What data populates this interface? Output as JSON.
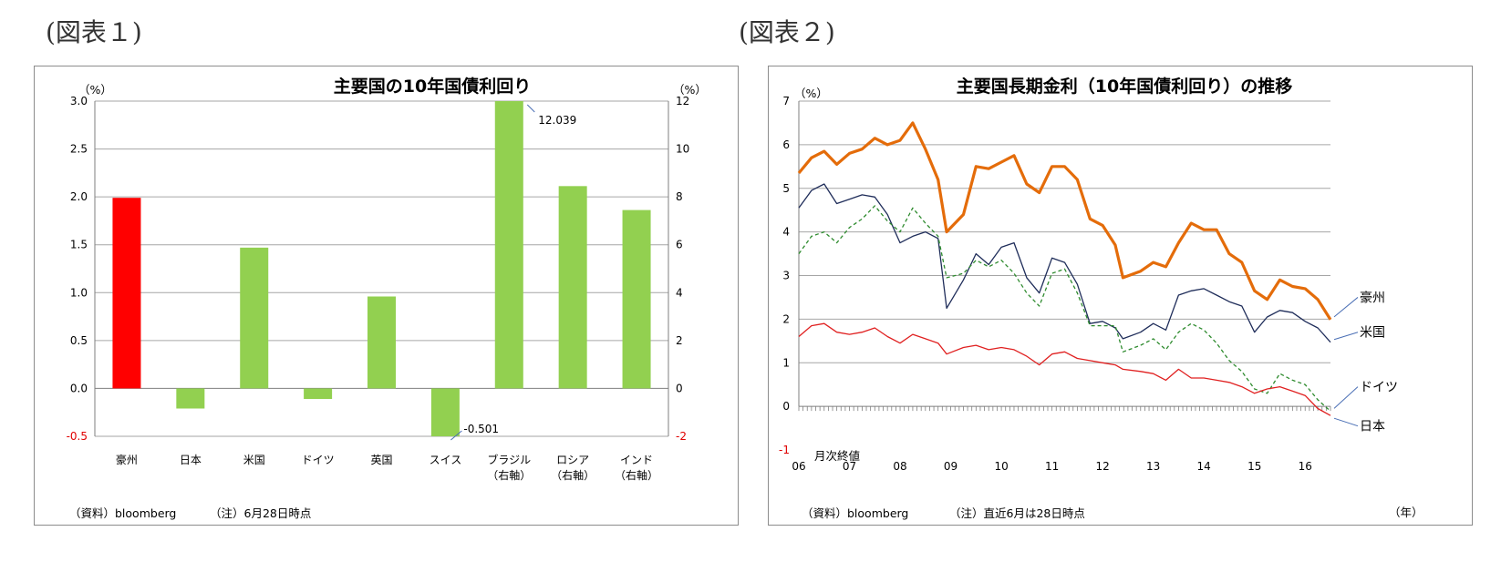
{
  "figures": [
    {
      "label": "(図表１)",
      "source": "（資料）bloomberg",
      "note": "（注）6月28日時点"
    },
    {
      "label": "(図表２)",
      "source": "（資料）bloomberg",
      "note": "（注）直近6月は28日時点",
      "inline_note": "月次終値"
    }
  ],
  "chart_data": [
    {
      "type": "bar",
      "title": "主要国の10年国債利回り",
      "left_unit": "（%）",
      "right_unit": "（%）",
      "categories": [
        "豪州",
        "日本",
        "米国",
        "ドイツ",
        "英国",
        "スイス",
        "ブラジル\n（右軸）",
        "ロシア\n（右軸）",
        "インド\n（右軸）"
      ],
      "values": [
        1.99,
        -0.21,
        1.47,
        -0.11,
        0.96,
        -0.501,
        12.039,
        8.45,
        7.45
      ],
      "axis": [
        "left",
        "left",
        "left",
        "left",
        "left",
        "left",
        "right",
        "right",
        "right"
      ],
      "colors": [
        "#ff0000",
        "#92d050",
        "#92d050",
        "#92d050",
        "#92d050",
        "#92d050",
        "#92d050",
        "#92d050",
        "#92d050"
      ],
      "data_labels": [
        {
          "category": "スイス",
          "text": "-0.501"
        },
        {
          "category": "ブラジル\n（右軸）",
          "text": "12.039"
        }
      ],
      "ylim_left": [
        -0.5,
        3.0
      ],
      "yticks_left": [
        "-0.5",
        "0.0",
        "0.5",
        "1.0",
        "1.5",
        "2.0",
        "2.5",
        "3.0"
      ],
      "ylim_right": [
        -2,
        12
      ],
      "yticks_right": [
        "-2",
        "0",
        "2",
        "4",
        "6",
        "8",
        "10",
        "12"
      ],
      "grid": true
    },
    {
      "type": "line",
      "title": "主要国長期金利（10年国債利回り）の推移",
      "y_unit": "（%）",
      "x_unit": "（年）",
      "x_labels": [
        "06",
        "07",
        "08",
        "09",
        "10",
        "11",
        "12",
        "13",
        "14",
        "15",
        "16"
      ],
      "x_start": 2006.0,
      "x_end": 2016.5,
      "ylim": [
        -1,
        7
      ],
      "yticks": [
        "-1",
        "0",
        "1",
        "2",
        "3",
        "4",
        "5",
        "6",
        "7"
      ],
      "grid": true,
      "series": [
        {
          "name": "豪州",
          "color": "#e46c0a",
          "style": "solid",
          "width": "thick",
          "points": [
            [
              2006.0,
              5.35
            ],
            [
              2006.25,
              5.7
            ],
            [
              2006.5,
              5.85
            ],
            [
              2006.75,
              5.55
            ],
            [
              2007.0,
              5.8
            ],
            [
              2007.25,
              5.9
            ],
            [
              2007.5,
              6.15
            ],
            [
              2007.75,
              6.0
            ],
            [
              2008.0,
              6.1
            ],
            [
              2008.25,
              6.5
            ],
            [
              2008.5,
              5.9
            ],
            [
              2008.75,
              5.2
            ],
            [
              2008.92,
              4.0
            ],
            [
              2009.25,
              4.4
            ],
            [
              2009.5,
              5.5
            ],
            [
              2009.75,
              5.45
            ],
            [
              2010.0,
              5.6
            ],
            [
              2010.25,
              5.75
            ],
            [
              2010.5,
              5.1
            ],
            [
              2010.75,
              4.9
            ],
            [
              2011.0,
              5.5
            ],
            [
              2011.25,
              5.5
            ],
            [
              2011.5,
              5.2
            ],
            [
              2011.75,
              4.3
            ],
            [
              2012.0,
              4.15
            ],
            [
              2012.25,
              3.7
            ],
            [
              2012.4,
              2.95
            ],
            [
              2012.75,
              3.1
            ],
            [
              2013.0,
              3.3
            ],
            [
              2013.25,
              3.2
            ],
            [
              2013.5,
              3.75
            ],
            [
              2013.75,
              4.2
            ],
            [
              2014.0,
              4.05
            ],
            [
              2014.25,
              4.05
            ],
            [
              2014.5,
              3.5
            ],
            [
              2014.75,
              3.3
            ],
            [
              2015.0,
              2.65
            ],
            [
              2015.25,
              2.45
            ],
            [
              2015.5,
              2.9
            ],
            [
              2015.75,
              2.75
            ],
            [
              2016.0,
              2.7
            ],
            [
              2016.25,
              2.45
            ],
            [
              2016.5,
              1.99
            ]
          ]
        },
        {
          "name": "米国",
          "color": "#1f2d5a",
          "style": "solid",
          "width": "thin",
          "points": [
            [
              2006.0,
              4.55
            ],
            [
              2006.25,
              4.95
            ],
            [
              2006.5,
              5.1
            ],
            [
              2006.75,
              4.65
            ],
            [
              2007.0,
              4.75
            ],
            [
              2007.25,
              4.85
            ],
            [
              2007.5,
              4.8
            ],
            [
              2007.75,
              4.4
            ],
            [
              2008.0,
              3.75
            ],
            [
              2008.25,
              3.9
            ],
            [
              2008.5,
              4.0
            ],
            [
              2008.75,
              3.85
            ],
            [
              2008.92,
              2.25
            ],
            [
              2009.25,
              2.9
            ],
            [
              2009.5,
              3.5
            ],
            [
              2009.75,
              3.25
            ],
            [
              2010.0,
              3.65
            ],
            [
              2010.25,
              3.75
            ],
            [
              2010.5,
              2.95
            ],
            [
              2010.75,
              2.6
            ],
            [
              2011.0,
              3.4
            ],
            [
              2011.25,
              3.3
            ],
            [
              2011.5,
              2.8
            ],
            [
              2011.75,
              1.9
            ],
            [
              2012.0,
              1.95
            ],
            [
              2012.25,
              1.8
            ],
            [
              2012.4,
              1.55
            ],
            [
              2012.75,
              1.7
            ],
            [
              2013.0,
              1.9
            ],
            [
              2013.25,
              1.75
            ],
            [
              2013.5,
              2.55
            ],
            [
              2013.75,
              2.65
            ],
            [
              2014.0,
              2.7
            ],
            [
              2014.25,
              2.55
            ],
            [
              2014.5,
              2.4
            ],
            [
              2014.75,
              2.3
            ],
            [
              2015.0,
              1.7
            ],
            [
              2015.25,
              2.05
            ],
            [
              2015.5,
              2.2
            ],
            [
              2015.75,
              2.15
            ],
            [
              2016.0,
              1.95
            ],
            [
              2016.25,
              1.8
            ],
            [
              2016.5,
              1.47
            ]
          ]
        },
        {
          "name": "ドイツ",
          "color": "#2e8b2e",
          "style": "dashed",
          "width": "thin",
          "points": [
            [
              2006.0,
              3.5
            ],
            [
              2006.25,
              3.9
            ],
            [
              2006.5,
              4.0
            ],
            [
              2006.75,
              3.75
            ],
            [
              2007.0,
              4.1
            ],
            [
              2007.25,
              4.3
            ],
            [
              2007.5,
              4.6
            ],
            [
              2007.75,
              4.25
            ],
            [
              2008.0,
              4.0
            ],
            [
              2008.25,
              4.55
            ],
            [
              2008.5,
              4.2
            ],
            [
              2008.75,
              3.9
            ],
            [
              2008.92,
              2.95
            ],
            [
              2009.25,
              3.05
            ],
            [
              2009.5,
              3.35
            ],
            [
              2009.75,
              3.2
            ],
            [
              2010.0,
              3.35
            ],
            [
              2010.25,
              3.05
            ],
            [
              2010.5,
              2.6
            ],
            [
              2010.75,
              2.3
            ],
            [
              2011.0,
              3.05
            ],
            [
              2011.25,
              3.15
            ],
            [
              2011.5,
              2.6
            ],
            [
              2011.75,
              1.85
            ],
            [
              2012.0,
              1.85
            ],
            [
              2012.25,
              1.85
            ],
            [
              2012.4,
              1.25
            ],
            [
              2012.75,
              1.4
            ],
            [
              2013.0,
              1.55
            ],
            [
              2013.25,
              1.3
            ],
            [
              2013.5,
              1.7
            ],
            [
              2013.75,
              1.9
            ],
            [
              2014.0,
              1.75
            ],
            [
              2014.25,
              1.45
            ],
            [
              2014.5,
              1.05
            ],
            [
              2014.75,
              0.8
            ],
            [
              2015.0,
              0.4
            ],
            [
              2015.25,
              0.3
            ],
            [
              2015.5,
              0.75
            ],
            [
              2015.75,
              0.6
            ],
            [
              2016.0,
              0.5
            ],
            [
              2016.25,
              0.15
            ],
            [
              2016.5,
              -0.11
            ]
          ]
        },
        {
          "name": "日本",
          "color": "#e02020",
          "style": "solid",
          "width": "thin",
          "points": [
            [
              2006.0,
              1.6
            ],
            [
              2006.25,
              1.85
            ],
            [
              2006.5,
              1.9
            ],
            [
              2006.75,
              1.7
            ],
            [
              2007.0,
              1.65
            ],
            [
              2007.25,
              1.7
            ],
            [
              2007.5,
              1.8
            ],
            [
              2007.75,
              1.6
            ],
            [
              2008.0,
              1.45
            ],
            [
              2008.25,
              1.65
            ],
            [
              2008.5,
              1.55
            ],
            [
              2008.75,
              1.45
            ],
            [
              2008.92,
              1.2
            ],
            [
              2009.25,
              1.35
            ],
            [
              2009.5,
              1.4
            ],
            [
              2009.75,
              1.3
            ],
            [
              2010.0,
              1.35
            ],
            [
              2010.25,
              1.3
            ],
            [
              2010.5,
              1.15
            ],
            [
              2010.75,
              0.95
            ],
            [
              2011.0,
              1.2
            ],
            [
              2011.25,
              1.25
            ],
            [
              2011.5,
              1.1
            ],
            [
              2011.75,
              1.05
            ],
            [
              2012.0,
              1.0
            ],
            [
              2012.25,
              0.95
            ],
            [
              2012.4,
              0.85
            ],
            [
              2012.75,
              0.8
            ],
            [
              2013.0,
              0.75
            ],
            [
              2013.25,
              0.6
            ],
            [
              2013.5,
              0.85
            ],
            [
              2013.75,
              0.65
            ],
            [
              2014.0,
              0.65
            ],
            [
              2014.25,
              0.6
            ],
            [
              2014.5,
              0.55
            ],
            [
              2014.75,
              0.45
            ],
            [
              2015.0,
              0.3
            ],
            [
              2015.25,
              0.4
            ],
            [
              2015.5,
              0.45
            ],
            [
              2015.75,
              0.35
            ],
            [
              2016.0,
              0.25
            ],
            [
              2016.25,
              -0.05
            ],
            [
              2016.5,
              -0.21
            ]
          ]
        }
      ]
    }
  ]
}
